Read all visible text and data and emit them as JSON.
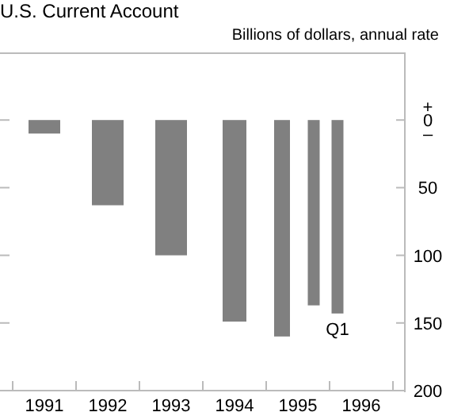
{
  "chart_data": {
    "type": "bar",
    "title": "U.S. Current Account",
    "subtitle": "Billions of dollars, annual rate",
    "x": [
      1991.5,
      1992.5,
      1993.5,
      1994.5,
      1995.25,
      1995.75,
      1996.125
    ],
    "values": [
      -10,
      -63,
      -100,
      -149,
      -160,
      -137,
      -143
    ],
    "color": "#808080",
    "xlim": [
      1990.8,
      1997.2
    ],
    "xticks": [
      {
        "value": 1991,
        "label": null
      },
      {
        "value": 1992,
        "label": null
      },
      {
        "value": 1993,
        "label": null
      },
      {
        "value": 1994,
        "label": null
      },
      {
        "value": 1995,
        "label": null
      },
      {
        "value": 1996,
        "label": null
      },
      {
        "value": 1997,
        "label": null
      },
      {
        "value": 1991.5,
        "label": "1991"
      },
      {
        "value": 1992.5,
        "label": "1992"
      },
      {
        "value": 1993.5,
        "label": "1993"
      },
      {
        "value": 1994.5,
        "label": "1994"
      },
      {
        "value": 1995.5,
        "label": "1995"
      },
      {
        "value": 1996.5,
        "label": "1996"
      }
    ],
    "ylim": [
      -200,
      50
    ],
    "yticks": [
      {
        "value": 10,
        "label": "+"
      },
      {
        "value": 0,
        "label": "0"
      },
      {
        "value": -10,
        "label": "–"
      },
      {
        "value": -50,
        "label": "50"
      },
      {
        "value": -100,
        "label": "100"
      },
      {
        "value": -150,
        "label": "150"
      },
      {
        "value": -200,
        "label": "200"
      }
    ],
    "annotations": [
      {
        "text": "Q1",
        "x": 1996.125,
        "y": -143
      }
    ]
  }
}
